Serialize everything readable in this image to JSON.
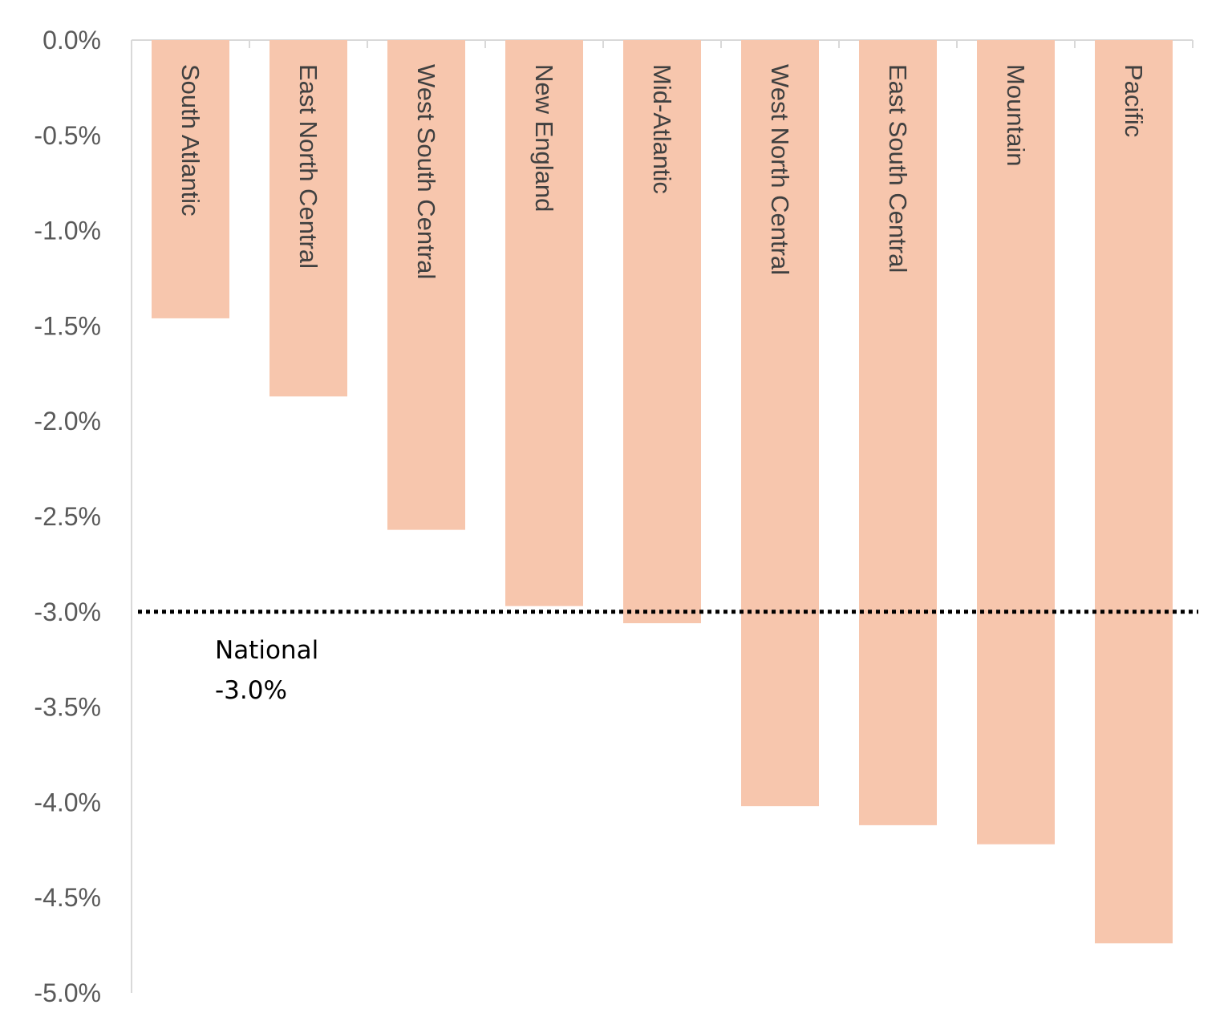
{
  "chart_data": {
    "type": "bar",
    "title": "",
    "xlabel": "",
    "ylabel": "",
    "categories": [
      "South Atlantic",
      "East North Central",
      "West South Central",
      "New England",
      "Mid-Atlantic",
      "West North Central",
      "East South Central",
      "Mountain",
      "Pacific"
    ],
    "values": [
      -1.46,
      -1.87,
      -2.57,
      -2.97,
      -3.06,
      -4.02,
      -4.12,
      -4.22,
      -4.74
    ],
    "ylim": [
      -5.0,
      0.0
    ],
    "y_ticks": [
      0.0,
      -0.5,
      -1.0,
      -1.5,
      -2.0,
      -2.5,
      -3.0,
      -3.5,
      -4.0,
      -4.5,
      -5.0
    ],
    "y_tick_labels": [
      "0.0%",
      "-0.5%",
      "-1.0%",
      "-1.5%",
      "-2.0%",
      "-2.5%",
      "-3.0%",
      "-3.5%",
      "-4.0%",
      "-4.5%",
      "-5.0%"
    ],
    "grid": false,
    "bar_color": "#F7C6AD",
    "reference_line": {
      "value": -3.0,
      "label_line1": "National",
      "label_line2": "-3.0%",
      "color": "#000000",
      "style": "dotted"
    }
  }
}
